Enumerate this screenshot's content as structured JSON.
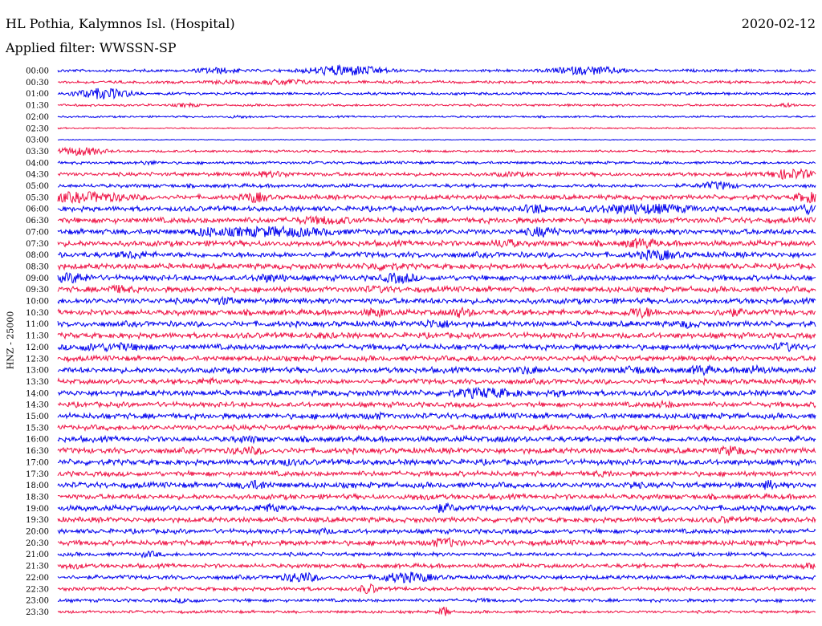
{
  "header": {
    "station": "HL Pothia, Kalymnos Isl. (Hospital)",
    "filter": "Applied filter: WWSSN-SP",
    "date": "2020-02-12"
  },
  "chart_data": {
    "type": "line",
    "title": "HL Pothia, Kalymnos Isl. (Hospital)",
    "subtitle": "Applied filter: WWSSN-SP",
    "ylabel": "HNZ - 25000",
    "colors": [
      "#0000ee",
      "#ee1144"
    ],
    "rows": [
      {
        "label": "00:00",
        "color": "#0000ee",
        "amplitude": 0.3,
        "bursts": [
          [
            0.21,
            5,
            0.6
          ],
          [
            0.38,
            8,
            1.0
          ],
          [
            0.7,
            8,
            0.8
          ]
        ]
      },
      {
        "label": "00:30",
        "color": "#ee1144",
        "amplitude": 0.3,
        "bursts": [
          [
            0.3,
            6,
            0.6
          ],
          [
            0.22,
            4,
            0.4
          ]
        ]
      },
      {
        "label": "01:00",
        "color": "#0000ee",
        "amplitude": 0.3,
        "bursts": [
          [
            0.06,
            6,
            1.0
          ]
        ]
      },
      {
        "label": "01:30",
        "color": "#ee1144",
        "amplitude": 0.25,
        "bursts": [
          [
            0.17,
            3,
            0.4
          ],
          [
            0.96,
            3,
            0.4
          ]
        ]
      },
      {
        "label": "02:00",
        "color": "#0000ee",
        "amplitude": 0.2,
        "bursts": [
          [
            0.24,
            3,
            0.3
          ]
        ]
      },
      {
        "label": "02:30",
        "color": "#ee1144",
        "amplitude": 0.15,
        "bursts": []
      },
      {
        "label": "03:00",
        "color": "#0000ee",
        "amplitude": 0.1,
        "bursts": []
      },
      {
        "label": "03:30",
        "color": "#ee1144",
        "amplitude": 0.25,
        "bursts": [
          [
            0.03,
            5,
            0.8
          ]
        ]
      },
      {
        "label": "04:00",
        "color": "#0000ee",
        "amplitude": 0.3,
        "bursts": [
          [
            0.12,
            3,
            0.4
          ]
        ]
      },
      {
        "label": "04:30",
        "color": "#ee1144",
        "amplitude": 0.4,
        "bursts": [
          [
            0.28,
            6,
            0.6
          ],
          [
            0.6,
            5,
            0.5
          ],
          [
            0.97,
            5,
            1.0
          ]
        ]
      },
      {
        "label": "05:00",
        "color": "#0000ee",
        "amplitude": 0.4,
        "bursts": [
          [
            0.87,
            4,
            0.8
          ]
        ]
      },
      {
        "label": "05:30",
        "color": "#ee1144",
        "amplitude": 0.5,
        "bursts": [
          [
            0.03,
            12,
            1.0
          ],
          [
            0.26,
            3,
            1.0
          ],
          [
            0.99,
            3,
            1.0
          ]
        ]
      },
      {
        "label": "06:00",
        "color": "#0000ee",
        "amplitude": 0.55,
        "bursts": [
          [
            0.63,
            3,
            1.0
          ],
          [
            0.77,
            12,
            1.0
          ],
          [
            0.99,
            3,
            1.0
          ]
        ]
      },
      {
        "label": "06:30",
        "color": "#ee1144",
        "amplitude": 0.6,
        "bursts": [
          [
            0.35,
            8,
            0.8
          ]
        ]
      },
      {
        "label": "07:00",
        "color": "#0000ee",
        "amplitude": 0.6,
        "bursts": [
          [
            0.2,
            4,
            1.0
          ],
          [
            0.28,
            14,
            1.0
          ],
          [
            0.64,
            4,
            1.0
          ]
        ]
      },
      {
        "label": "07:30",
        "color": "#ee1144",
        "amplitude": 0.6,
        "bursts": [
          [
            0.59,
            3,
            0.9
          ],
          [
            0.77,
            4,
            1.0
          ]
        ]
      },
      {
        "label": "08:00",
        "color": "#0000ee",
        "amplitude": 0.6,
        "bursts": [
          [
            0.1,
            4,
            0.8
          ],
          [
            0.79,
            5,
            1.0
          ]
        ]
      },
      {
        "label": "08:30",
        "color": "#ee1144",
        "amplitude": 0.6,
        "bursts": [
          [
            0.43,
            5,
            0.8
          ]
        ]
      },
      {
        "label": "09:00",
        "color": "#0000ee",
        "amplitude": 0.6,
        "bursts": [
          [
            0.02,
            4,
            1.0
          ],
          [
            0.28,
            5,
            0.8
          ],
          [
            0.45,
            4,
            1.0
          ]
        ]
      },
      {
        "label": "09:30",
        "color": "#ee1144",
        "amplitude": 0.6,
        "bursts": [
          [
            0.08,
            4,
            0.8
          ],
          [
            0.42,
            5,
            0.7
          ]
        ]
      },
      {
        "label": "10:00",
        "color": "#0000ee",
        "amplitude": 0.6,
        "bursts": [
          [
            0.22,
            3,
            0.8
          ]
        ]
      },
      {
        "label": "10:30",
        "color": "#ee1144",
        "amplitude": 0.6,
        "bursts": [
          [
            0.42,
            3,
            0.9
          ],
          [
            0.53,
            3,
            1.0
          ],
          [
            0.77,
            4,
            1.0
          ],
          [
            0.89,
            4,
            0.8
          ]
        ]
      },
      {
        "label": "11:00",
        "color": "#0000ee",
        "amplitude": 0.6,
        "bursts": [
          [
            0.5,
            4,
            0.9
          ],
          [
            0.83,
            3,
            0.8
          ]
        ]
      },
      {
        "label": "11:30",
        "color": "#ee1144",
        "amplitude": 0.6,
        "bursts": [
          [
            0.35,
            4,
            0.6
          ]
        ]
      },
      {
        "label": "12:00",
        "color": "#0000ee",
        "amplitude": 0.6,
        "bursts": [
          [
            0.07,
            10,
            0.8
          ],
          [
            0.96,
            3,
            0.9
          ]
        ]
      },
      {
        "label": "12:30",
        "color": "#ee1144",
        "amplitude": 0.55,
        "bursts": [
          [
            0.55,
            3,
            0.6
          ]
        ]
      },
      {
        "label": "13:00",
        "color": "#0000ee",
        "amplitude": 0.6,
        "bursts": [
          [
            0.62,
            3,
            0.8
          ],
          [
            0.76,
            4,
            0.8
          ],
          [
            0.85,
            3,
            1.0
          ],
          [
            0.92,
            3,
            0.9
          ]
        ]
      },
      {
        "label": "13:30",
        "color": "#ee1144",
        "amplitude": 0.55,
        "bursts": [
          [
            0.2,
            3,
            0.7
          ]
        ]
      },
      {
        "label": "14:00",
        "color": "#0000ee",
        "amplitude": 0.6,
        "bursts": [
          [
            0.56,
            8,
            1.0
          ],
          [
            0.66,
            2,
            0.7
          ]
        ]
      },
      {
        "label": "14:30",
        "color": "#ee1144",
        "amplitude": 0.55,
        "bursts": [
          [
            0.8,
            3,
            0.7
          ]
        ]
      },
      {
        "label": "15:00",
        "color": "#0000ee",
        "amplitude": 0.6,
        "bursts": [
          [
            0.42,
            3,
            0.7
          ]
        ]
      },
      {
        "label": "15:30",
        "color": "#ee1144",
        "amplitude": 0.55,
        "bursts": [
          [
            0.64,
            3,
            0.6
          ]
        ]
      },
      {
        "label": "16:00",
        "color": "#0000ee",
        "amplitude": 0.6,
        "bursts": [
          [
            0.25,
            4,
            0.7
          ],
          [
            0.59,
            3,
            0.6
          ]
        ]
      },
      {
        "label": "16:30",
        "color": "#ee1144",
        "amplitude": 0.6,
        "bursts": [
          [
            0.25,
            5,
            0.8
          ],
          [
            0.89,
            3,
            1.0
          ]
        ]
      },
      {
        "label": "17:00",
        "color": "#0000ee",
        "amplitude": 0.6,
        "bursts": [
          [
            0.3,
            5,
            0.7
          ]
        ]
      },
      {
        "label": "17:30",
        "color": "#ee1144",
        "amplitude": 0.55,
        "bursts": [
          [
            0.72,
            4,
            0.6
          ]
        ]
      },
      {
        "label": "18:00",
        "color": "#0000ee",
        "amplitude": 0.6,
        "bursts": [
          [
            0.26,
            4,
            0.9
          ],
          [
            0.76,
            2,
            0.8
          ],
          [
            0.94,
            2,
            1.0
          ]
        ]
      },
      {
        "label": "18:30",
        "color": "#ee1144",
        "amplitude": 0.55,
        "bursts": [
          [
            0.48,
            4,
            0.6
          ]
        ]
      },
      {
        "label": "19:00",
        "color": "#0000ee",
        "amplitude": 0.6,
        "bursts": [
          [
            0.28,
            3,
            0.9
          ],
          [
            0.51,
            3,
            0.9
          ]
        ]
      },
      {
        "label": "19:30",
        "color": "#ee1144",
        "amplitude": 0.55,
        "bursts": [
          [
            0.88,
            3,
            0.7
          ]
        ]
      },
      {
        "label": "20:00",
        "color": "#0000ee",
        "amplitude": 0.5,
        "bursts": [
          [
            0.35,
            3,
            0.6
          ]
        ]
      },
      {
        "label": "20:30",
        "color": "#ee1144",
        "amplitude": 0.55,
        "bursts": [
          [
            0.51,
            4,
            0.9
          ]
        ]
      },
      {
        "label": "21:00",
        "color": "#0000ee",
        "amplitude": 0.4,
        "bursts": [
          [
            0.12,
            3,
            0.6
          ]
        ]
      },
      {
        "label": "21:30",
        "color": "#ee1144",
        "amplitude": 0.45,
        "bursts": [
          [
            0.02,
            3,
            0.6
          ],
          [
            0.99,
            3,
            0.6
          ]
        ]
      },
      {
        "label": "22:00",
        "color": "#0000ee",
        "amplitude": 0.45,
        "bursts": [
          [
            0.32,
            4,
            1.0
          ],
          [
            0.46,
            6,
            1.0
          ]
        ]
      },
      {
        "label": "22:30",
        "color": "#ee1144",
        "amplitude": 0.4,
        "bursts": [
          [
            0.41,
            2,
            1.0
          ]
        ]
      },
      {
        "label": "23:00",
        "color": "#0000ee",
        "amplitude": 0.35,
        "bursts": [
          [
            0.17,
            3,
            0.5
          ],
          [
            0.56,
            3,
            0.4
          ]
        ]
      },
      {
        "label": "23:30",
        "color": "#ee1144",
        "amplitude": 0.3,
        "bursts": [
          [
            0.51,
            1,
            1.0
          ]
        ]
      }
    ]
  }
}
